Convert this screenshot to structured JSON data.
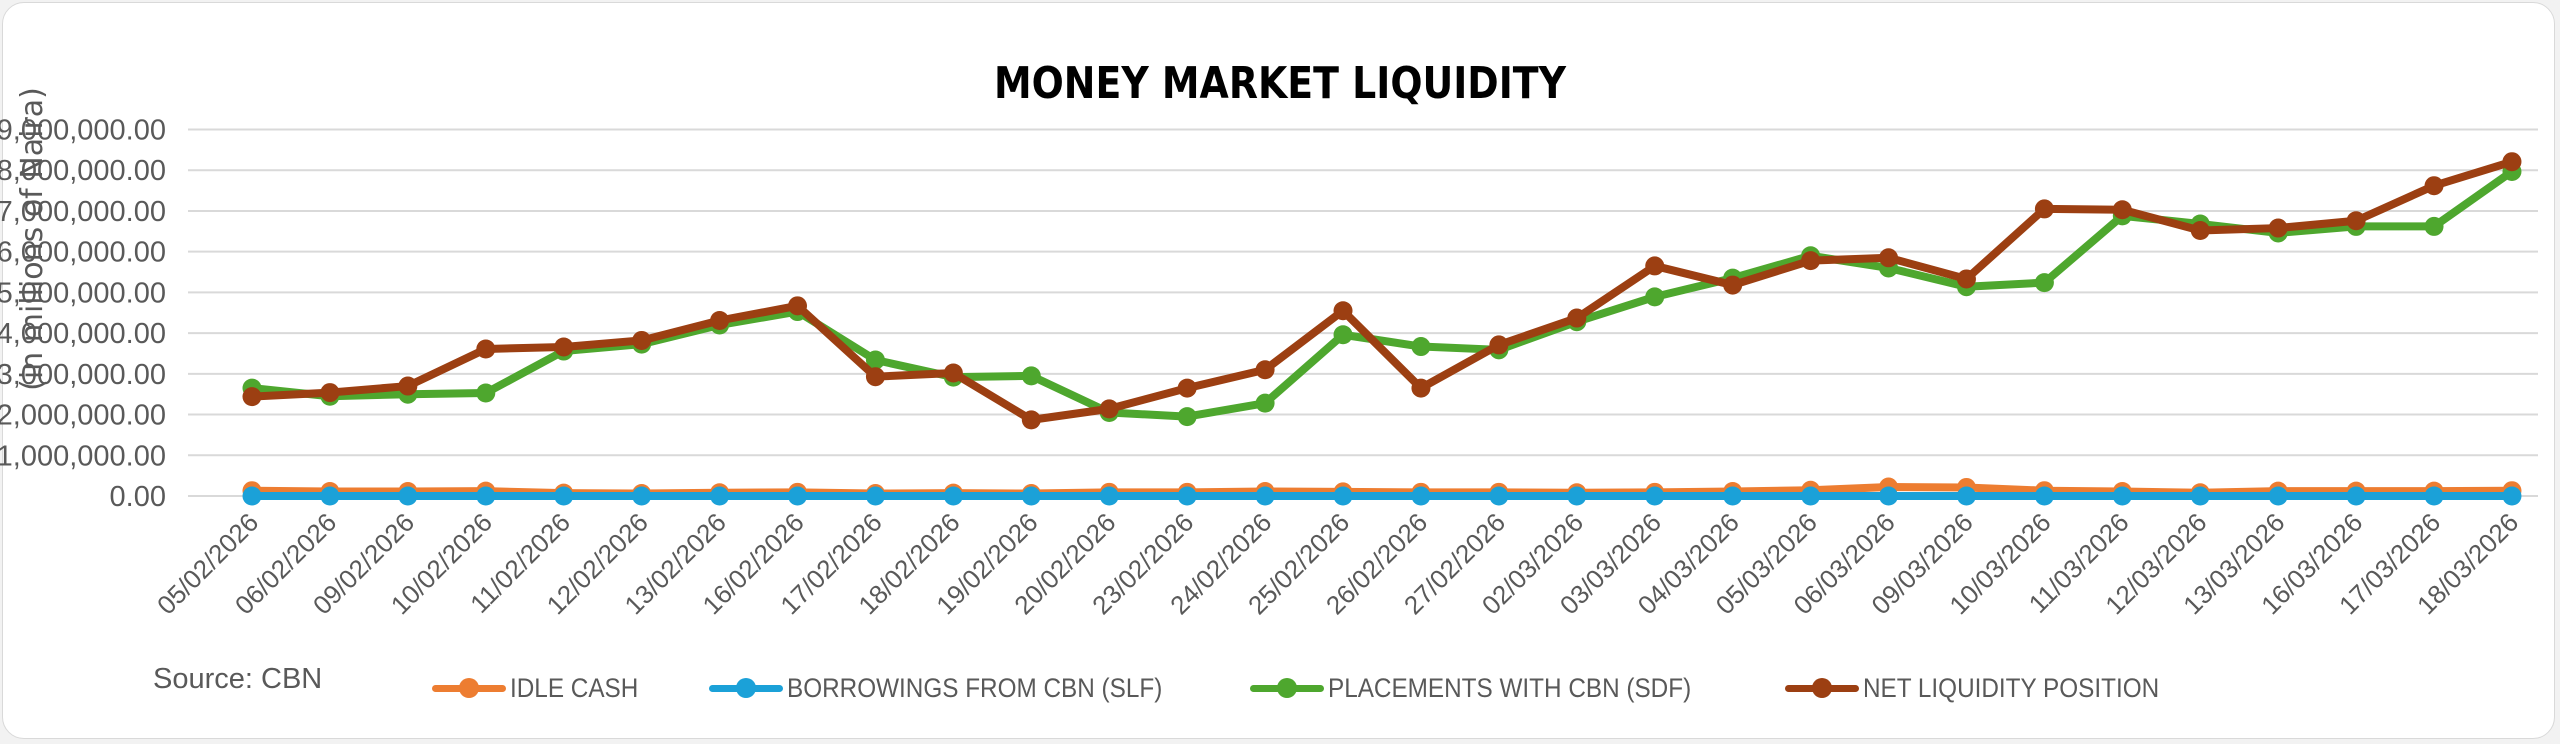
{
  "chart": {
    "title": "MONEY MARKET LIQUIDITY",
    "y_axis_title": "(in millions of Naira)",
    "source": "Source: CBN",
    "y_ticks": [
      "0.00",
      "1,000,000.00",
      "2,000,000.00",
      "3,000,000.00",
      "4,000,000.00",
      "5,000,000.00",
      "6,000,000.00",
      "7,000,000.00",
      "8,000,000.00",
      "9,000,000.00"
    ]
  },
  "legend": [
    {
      "label": "IDLE CASH",
      "color": "#ED7D31"
    },
    {
      "label": "BORROWINGS FROM CBN (SLF)",
      "color": "#1BA1D8"
    },
    {
      "label": "PLACEMENTS WITH CBN (SDF)",
      "color": "#4EA72E"
    },
    {
      "label": "NET LIQUIDITY POSITION",
      "color": "#9C3F12"
    }
  ],
  "chart_data": {
    "type": "line",
    "title": "MONEY MARKET LIQUIDITY",
    "xlabel": "",
    "ylabel": "(in millions of Naira)",
    "ylim": [
      0,
      9000000
    ],
    "grid": true,
    "legend_position": "bottom",
    "annotations": [
      "Source: CBN"
    ],
    "categories": [
      "05/02/2026",
      "06/02/2026",
      "09/02/2026",
      "10/02/2026",
      "11/02/2026",
      "12/02/2026",
      "13/02/2026",
      "16/02/2026",
      "17/02/2026",
      "18/02/2026",
      "19/02/2026",
      "20/02/2026",
      "23/02/2026",
      "24/02/2026",
      "25/02/2026",
      "26/02/2026",
      "27/02/2026",
      "02/03/2026",
      "03/03/2026",
      "04/03/2026",
      "05/03/2026",
      "06/03/2026",
      "09/03/2026",
      "10/03/2026",
      "11/03/2026",
      "12/03/2026",
      "13/03/2026",
      "16/03/2026",
      "17/03/2026",
      "18/03/2026"
    ],
    "series": [
      {
        "name": "IDLE CASH",
        "color": "#ED7D31",
        "values": [
          130000,
          110000,
          110000,
          120000,
          70000,
          60000,
          80000,
          90000,
          60000,
          70000,
          60000,
          90000,
          90000,
          110000,
          100000,
          90000,
          90000,
          80000,
          90000,
          110000,
          140000,
          220000,
          210000,
          130000,
          110000,
          80000,
          120000,
          120000,
          120000,
          130000
        ]
      },
      {
        "name": "BORROWINGS FROM CBN (SLF)",
        "color": "#1BA1D8",
        "values": [
          0,
          0,
          0,
          0,
          0,
          0,
          0,
          0,
          0,
          0,
          0,
          0,
          0,
          0,
          0,
          0,
          0,
          0,
          0,
          0,
          0,
          0,
          0,
          0,
          0,
          0,
          0,
          0,
          0,
          0
        ]
      },
      {
        "name": "PLACEMENTS WITH CBN (SDF)",
        "color": "#4EA72E",
        "values": [
          2650000,
          2450000,
          2500000,
          2530000,
          3560000,
          3730000,
          4200000,
          4530000,
          3340000,
          2920000,
          2950000,
          2050000,
          1950000,
          2280000,
          3960000,
          3670000,
          3590000,
          4280000,
          4890000,
          5350000,
          5900000,
          5600000,
          5140000,
          5240000,
          6880000,
          6680000,
          6460000,
          6620000,
          6620000,
          7970000
        ]
      },
      {
        "name": "NET LIQUIDITY POSITION",
        "color": "#9C3F12",
        "values": [
          2440000,
          2540000,
          2700000,
          3610000,
          3660000,
          3820000,
          4310000,
          4670000,
          2930000,
          3020000,
          1870000,
          2140000,
          2650000,
          3100000,
          4550000,
          2650000,
          3710000,
          4370000,
          5650000,
          5180000,
          5780000,
          5850000,
          5330000,
          7050000,
          7030000,
          6520000,
          6580000,
          6760000,
          7620000,
          8210000
        ]
      }
    ]
  }
}
